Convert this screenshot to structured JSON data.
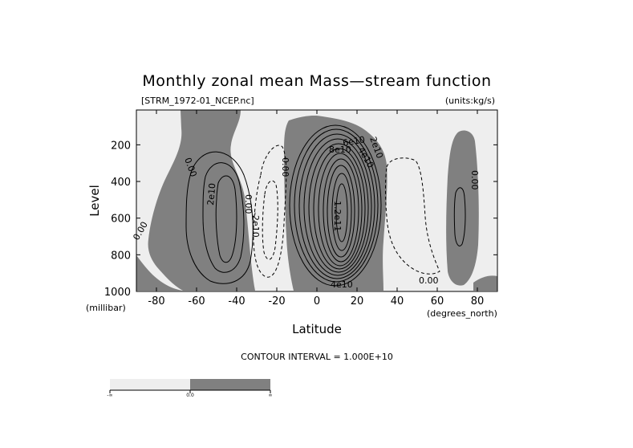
{
  "chart_data": {
    "type": "contour",
    "title": "Monthly zonal mean Mass—stream function",
    "file_label": "[STRM_1972-01_NCEP.nc]",
    "units_label": "(units:kg/s)",
    "xlabel": "Latitude",
    "ylabel": "Level",
    "x_unit": "(degrees_north)",
    "y_unit": "(millibar)",
    "xlim": [
      -90,
      90
    ],
    "ylim": [
      1000,
      10
    ],
    "x_ticks": [
      -80,
      -60,
      -40,
      -20,
      0,
      20,
      40,
      60,
      80
    ],
    "y_ticks": [
      200,
      400,
      600,
      800,
      1000
    ],
    "contour_interval_text": "CONTOUR INTERVAL = 1.000E+10",
    "contour_interval": 10000000000.0,
    "fill_colors": {
      "negative": "#eeeeee",
      "positive": "#808080",
      "background": "#ffffff"
    },
    "colorbar": {
      "labels": [
        "-∞",
        "0.0",
        "∞"
      ]
    },
    "cells": [
      {
        "name": "southern-polar-negative",
        "lat_range": [
          -90,
          -65
        ],
        "sign": "negative",
        "peak_value": -1000000000.0
      },
      {
        "name": "ferrel-cell-south-positive",
        "lat_range": [
          -65,
          -30
        ],
        "sign": "positive",
        "peak_value": 20000000000.0
      },
      {
        "name": "southern-negative-cell",
        "lat_range": [
          -30,
          -5
        ],
        "sign": "negative",
        "peak_value": -20000000000.0
      },
      {
        "name": "hadley-cell-positive",
        "lat_range": [
          -12,
          35
        ],
        "sign": "positive",
        "peak_value": 120000000000.0
      },
      {
        "name": "northern-negative-cell",
        "lat_range": [
          32,
          65
        ],
        "sign": "negative",
        "peak_value": -10000000000.0
      },
      {
        "name": "northern-polar-positive",
        "lat_range": [
          63,
          82
        ],
        "sign": "positive",
        "peak_value": 10000000000.0
      }
    ],
    "contour_labels": [
      "0.00",
      "2e10",
      "0.00",
      "-2e10",
      "0.00",
      "8e10",
      "6e10",
      "4e10",
      "2e10",
      "1.2e11",
      "4e10",
      "0.00",
      "0.00",
      "0.00"
    ]
  }
}
